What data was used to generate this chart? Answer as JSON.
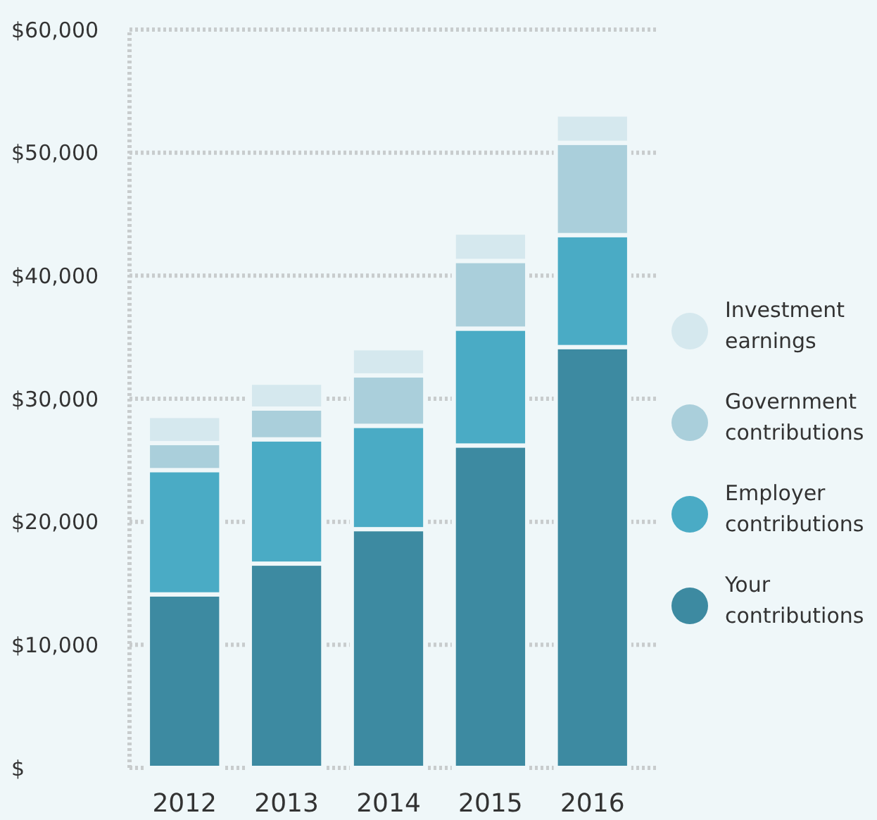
{
  "chart_data": {
    "type": "bar",
    "stacked": true,
    "categories": [
      "2012",
      "2013",
      "2014",
      "2015",
      "2016"
    ],
    "series": [
      {
        "name": "Your contributions",
        "color": "#3d8aa1",
        "values": [
          14100,
          16600,
          19400,
          26200,
          34200
        ]
      },
      {
        "name": "Employer contributions",
        "color": "#4aabc5",
        "values": [
          10100,
          10100,
          8400,
          9500,
          9100
        ]
      },
      {
        "name": "Government contributions",
        "color": "#aacfdb",
        "values": [
          2200,
          2500,
          4100,
          5500,
          7500
        ]
      },
      {
        "name": "Investment earnings",
        "color": "#d5e8ee",
        "values": [
          2200,
          2100,
          2200,
          2300,
          2300
        ]
      }
    ],
    "ylim": [
      0,
      60000
    ],
    "yticks": [
      {
        "value": 0,
        "label": "$"
      },
      {
        "value": 10000,
        "label": "$10,000"
      },
      {
        "value": 20000,
        "label": "$20,000"
      },
      {
        "value": 30000,
        "label": "$30,000"
      },
      {
        "value": 40000,
        "label": "$40,000"
      },
      {
        "value": 50000,
        "label": "$50,000"
      },
      {
        "value": 60000,
        "label": "$60,000"
      }
    ],
    "grid": "y",
    "legend": "right"
  }
}
